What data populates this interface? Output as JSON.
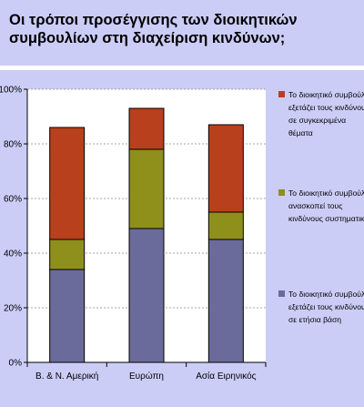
{
  "title": "Οι τρόποι προσέγγισης των διοικητικών συμβουλίων στη διαχείριση κινδύνων;",
  "colors": {
    "background": "#cccdf7",
    "plot_background": "#ffffff",
    "series_annual": "#6b6b9b",
    "series_systematic": "#8f8f1c",
    "series_specific": "#b8401c"
  },
  "chart_data": {
    "type": "bar",
    "stacked": true,
    "title": "Οι τρόποι προσέγγισης των διοικητικών συμβουλίων στη διαχείριση κινδύνων;",
    "categories": [
      "Β. & Ν. Αμερική",
      "Ευρώπη",
      "Ασία Ειρηνικός"
    ],
    "series": [
      {
        "name": "Το διοικητικό συμβούλιο εξετάζει τους κινδύνους σε ετήσια βάση",
        "legend_lines": [
          "Το διοικητικό συμβούλιο",
          "εξετάζει τους κινδύνους",
          "σε ετήσια βάση"
        ],
        "color": "#6b6b9b",
        "values": [
          34,
          49,
          45
        ]
      },
      {
        "name": "Το διοικητικό συμβούλιο ανασκοπεί τους κινδύνους συστηματικά",
        "legend_lines": [
          "Το διοικητικό συμβούλιο",
          "ανασκοπεί τους",
          "κινδύνους συστηματικά"
        ],
        "color": "#8f8f1c",
        "values": [
          11,
          29,
          10
        ]
      },
      {
        "name": "Το διοικητικό συμβούλιο εξετάζει τους κινδύνους σε συγκεκριμένα θέματα",
        "legend_lines": [
          "Το διοικητικό συμβούλιο",
          "εξετάζει τους κινδύνους",
          "σε συγκεκριμένα",
          "θέματα"
        ],
        "color": "#b8401c",
        "values": [
          41,
          15,
          32
        ]
      }
    ],
    "yticks": [
      "0%",
      "20%",
      "40%",
      "60%",
      "80%",
      "100%"
    ],
    "ylim": [
      0,
      100
    ],
    "grid": true,
    "legend_position": "right"
  }
}
